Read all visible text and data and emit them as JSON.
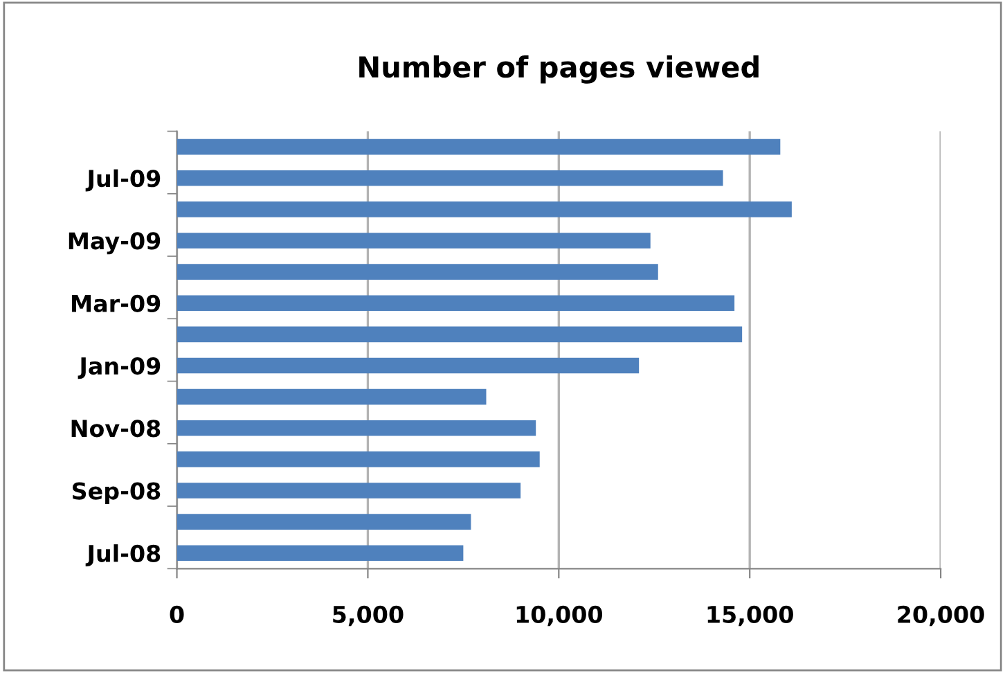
{
  "chart_data": {
    "type": "bar",
    "orientation": "horizontal",
    "title": "Number of pages viewed",
    "categories": [
      null,
      "Jul-09",
      null,
      "May-09",
      null,
      "Mar-09",
      null,
      "Jan-09",
      null,
      "Nov-08",
      null,
      "Sep-08",
      null,
      "Jul-08"
    ],
    "values": [
      15800,
      14300,
      16100,
      12400,
      12600,
      14600,
      14800,
      12100,
      8100,
      9400,
      9500,
      9000,
      7700,
      7500
    ],
    "color": "#4f81bd",
    "xlim": [
      0,
      20000
    ],
    "xticks": [
      {
        "value": 0,
        "label": "0"
      },
      {
        "value": 5000,
        "label": "5,000"
      },
      {
        "value": 10000,
        "label": "10,000"
      },
      {
        "value": 15000,
        "label": "15,000"
      },
      {
        "value": 20000,
        "label": "20,000"
      }
    ],
    "grid": "x",
    "legend": false
  }
}
